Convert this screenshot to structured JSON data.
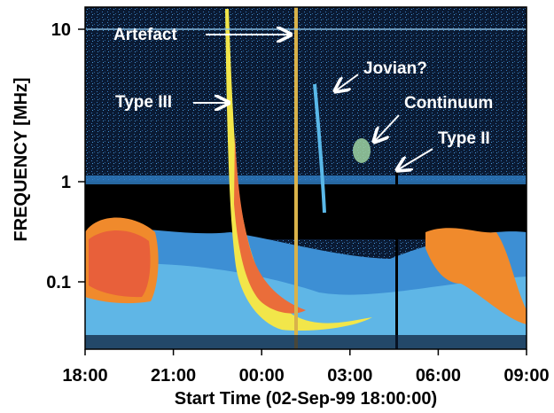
{
  "chart_data": {
    "type": "heatmap",
    "title": "",
    "xlabel": "Start Time (02-Sep-99 18:00:00)",
    "ylabel": "FREQUENCY [MHz]",
    "x_ticks": [
      "18:00",
      "21:00",
      "00:00",
      "03:00",
      "06:00",
      "09:00"
    ],
    "x_range_hours_from_start": [
      0,
      15
    ],
    "y_ticks": [
      {
        "label": "10",
        "value": 10
      },
      {
        "label": "1",
        "value": 1
      },
      {
        "label": "0.1",
        "value": 0.1
      }
    ],
    "y_scale": "log",
    "y_range_mhz": [
      0.03,
      14
    ],
    "grid": false,
    "colormap": [
      "#000000",
      "#0a2a55",
      "#3a8fd6",
      "#5ab8e8",
      "#f2e64a",
      "#f08a2c",
      "#e8603a"
    ],
    "annotations": [
      {
        "text": "Artefact"
      },
      {
        "text": "Type III"
      },
      {
        "text": "Jovian?"
      },
      {
        "text": "Continuum"
      },
      {
        "text": "Type II"
      }
    ]
  }
}
